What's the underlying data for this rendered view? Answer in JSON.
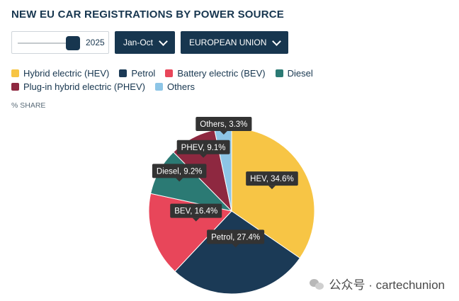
{
  "title": "NEW EU CAR REGISTRATIONS BY POWER SOURCE",
  "controls": {
    "year_value": "2025",
    "year_fraction": 0.93,
    "period": "Jan-Oct",
    "region": "EUROPEAN UNION"
  },
  "share_label": "% SHARE",
  "watermark": "公众号 · cartechunion",
  "chart_data": {
    "type": "pie",
    "title": "NEW EU CAR REGISTRATIONS BY POWER SOURCE",
    "legend_placement": "top",
    "series": [
      {
        "name": "Hybrid electric (HEV)",
        "value": 34.6,
        "color": "#f7c545",
        "label": "HEV, 34.6%"
      },
      {
        "name": "Petrol",
        "value": 27.4,
        "color": "#1b3a56",
        "label": "Petrol, 27.4%"
      },
      {
        "name": "Battery electric (BEV)",
        "value": 16.4,
        "color": "#e8465a",
        "label": "BEV, 16.4%"
      },
      {
        "name": "Diesel",
        "value": 9.2,
        "color": "#2b7a74",
        "label": "Diesel, 9.2%"
      },
      {
        "name": "Plug-in hybrid electric (PHEV)",
        "value": 9.1,
        "color": "#8e2840",
        "label": "PHEV, 9.1%"
      },
      {
        "name": "Others",
        "value": 3.3,
        "color": "#8dc5e6",
        "label": "Others, 3.3%"
      }
    ]
  }
}
